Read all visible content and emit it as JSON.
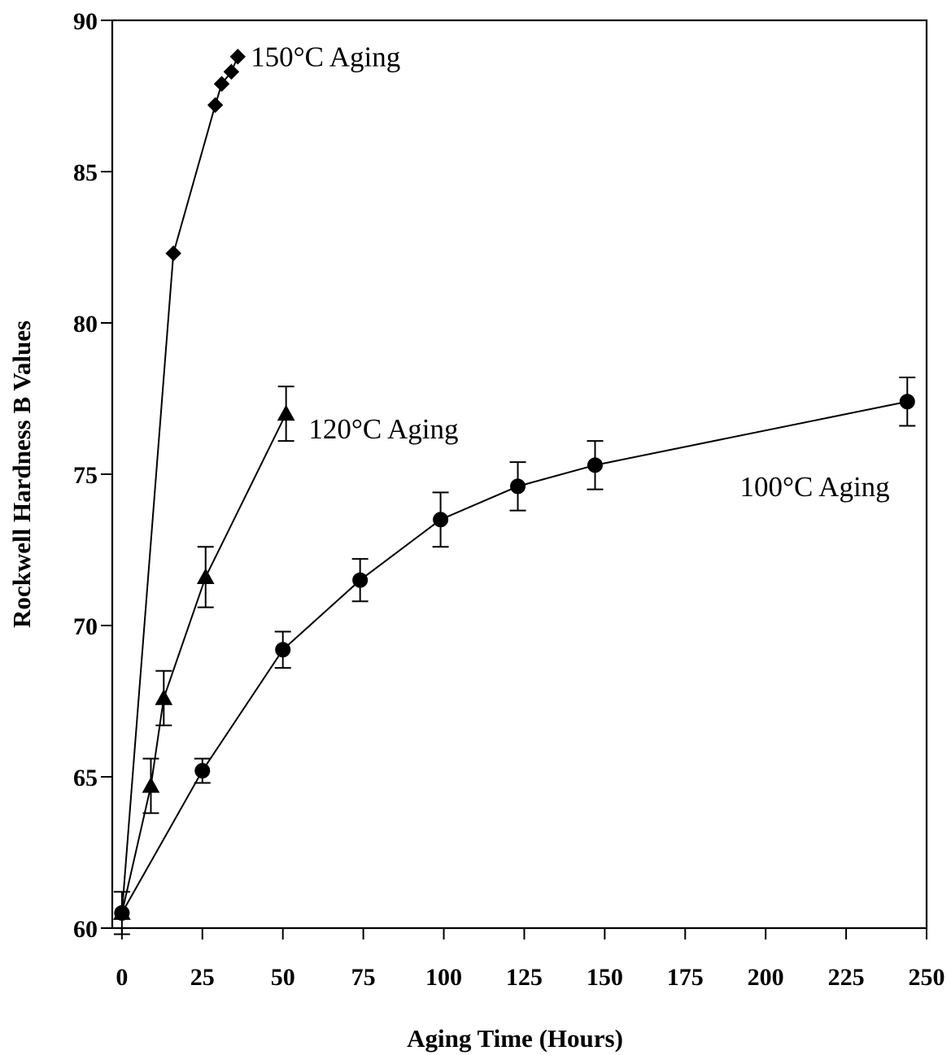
{
  "chart_data": {
    "type": "line",
    "xlabel": "Aging Time (Hours)",
    "ylabel": "Rockwell Hardness B Values",
    "xlim": [
      -3,
      250
    ],
    "ylim": [
      60,
      90
    ],
    "x_ticks": [
      0,
      25,
      50,
      75,
      100,
      125,
      150,
      175,
      200,
      225,
      250
    ],
    "y_ticks": [
      60,
      65,
      70,
      75,
      80,
      85,
      90
    ],
    "grid": false,
    "series": [
      {
        "label": "150°C Aging",
        "marker": "diamond",
        "x": [
          0,
          16,
          29,
          31,
          34,
          36
        ],
        "y": [
          60.5,
          82.3,
          87.2,
          87.9,
          88.3,
          88.8
        ],
        "err": [
          0.7,
          0,
          0,
          0,
          0,
          0
        ]
      },
      {
        "label": "120°C Aging",
        "marker": "triangle",
        "x": [
          0,
          9,
          13,
          26,
          51
        ],
        "y": [
          60.5,
          64.7,
          67.6,
          71.6,
          77.0
        ],
        "err": [
          0,
          0.9,
          0.9,
          1.0,
          0.9
        ]
      },
      {
        "label": "100°C Aging",
        "marker": "circle",
        "x": [
          0,
          25,
          50,
          74,
          99,
          123,
          147,
          244
        ],
        "y": [
          60.5,
          65.2,
          69.2,
          71.5,
          73.5,
          74.6,
          75.3,
          77.4
        ],
        "err": [
          0,
          0.4,
          0.6,
          0.7,
          0.9,
          0.8,
          0.8,
          0.8
        ]
      }
    ],
    "label_positions": [
      {
        "series": 0,
        "anchor_x": 40,
        "anchor_y": 88.8
      },
      {
        "series": 1,
        "anchor_x": 58,
        "anchor_y": 76.5
      },
      {
        "series": 2,
        "anchor_x": 192,
        "anchor_y": 74.6
      }
    ]
  }
}
